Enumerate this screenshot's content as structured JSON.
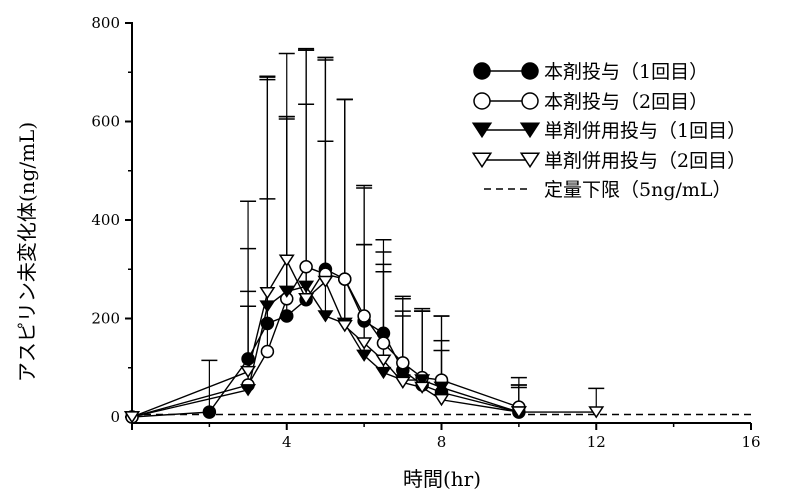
{
  "chart_data": {
    "type": "line",
    "xlabel": "時間(hr)",
    "ylabel": "アスピリン未変化体(ng/mL)",
    "xlim": [
      0,
      16
    ],
    "ylim": [
      0,
      800
    ],
    "xticks": [
      "4",
      "8",
      "12",
      "16"
    ],
    "yticks": [
      "0",
      "200",
      "400",
      "600",
      "800"
    ],
    "legend_position": "top-right",
    "series": [
      {
        "name": "本剤投与（1回目）",
        "marker": "filled-circle",
        "x": [
          0,
          2,
          3,
          3.5,
          4,
          4.5,
          5,
          5.5,
          6,
          6.5,
          7,
          7.5,
          8,
          10
        ],
        "y": [
          0,
          10,
          118,
          190,
          205,
          238,
          300,
          280,
          195,
          170,
          95,
          65,
          50,
          10
        ],
        "err": [
          0,
          105,
          320,
          500,
          400,
          510,
          430,
          365,
          155,
          125,
          120,
          150,
          85,
          50
        ]
      },
      {
        "name": "本剤投与（2回目）",
        "marker": "open-circle",
        "x": [
          0,
          3,
          3.5,
          4,
          4.5,
          5,
          5.5,
          6,
          6.5,
          7,
          7.5,
          8,
          10
        ],
        "y": [
          0,
          65,
          133,
          240,
          305,
          290,
          280,
          205,
          150,
          110,
          80,
          75,
          20
        ],
        "err": [
          0,
          160,
          310,
          370,
          440,
          435,
          365,
          265,
          185,
          135,
          135,
          130,
          45
        ]
      },
      {
        "name": "単剤併用投与（1回目）",
        "marker": "filled-triangle-down",
        "x": [
          0,
          3,
          3.5,
          4,
          4.5,
          5,
          5.5,
          6,
          6.5,
          7,
          7.5,
          8,
          10
        ],
        "y": [
          0,
          55,
          225,
          255,
          265,
          205,
          190,
          125,
          90,
          75,
          75,
          60,
          10
        ],
        "err": [
          0,
          200,
          460,
          355,
          370,
          355,
          455,
          225,
          220,
          130,
          140,
          145,
          55
        ]
      },
      {
        "name": "単剤併用投与（2回目）",
        "marker": "open-triangle-down",
        "x": [
          0,
          3,
          3.5,
          4,
          4.5,
          5,
          5.5,
          6,
          6.5,
          7,
          7.5,
          8,
          10,
          12
        ],
        "y": [
          0,
          92,
          252,
          318,
          240,
          275,
          185,
          150,
          115,
          70,
          60,
          35,
          10,
          10
        ],
        "err": [
          0,
          250,
          440,
          420,
          505,
          455,
          460,
          315,
          245,
          170,
          160,
          120,
          70,
          48
        ]
      }
    ],
    "reference_line": {
      "name": "定量下限（5ng/mL）",
      "y": 5,
      "style": "dashed"
    }
  }
}
